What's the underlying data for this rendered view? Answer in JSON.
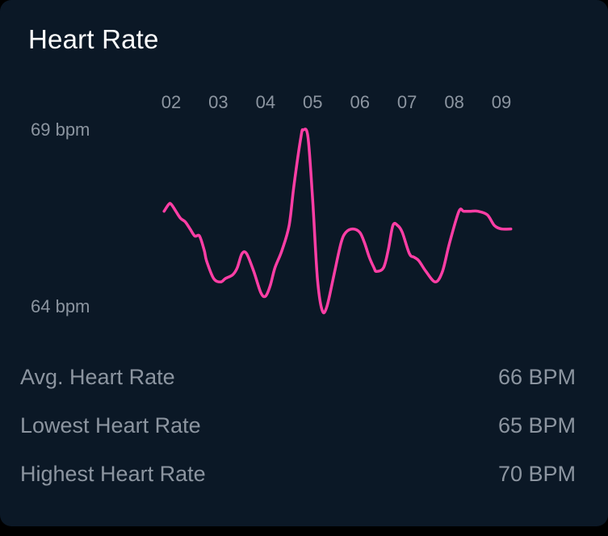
{
  "card": {
    "title": "Heart Rate",
    "background": "#0b1826"
  },
  "chart_data": {
    "type": "line",
    "title": "Heart Rate",
    "x_ticks": [
      "02",
      "03",
      "04",
      "05",
      "06",
      "07",
      "08",
      "09"
    ],
    "y_labels": [
      "69 bpm",
      "64 bpm"
    ],
    "ylim": [
      64,
      69
    ],
    "xlim": [
      2,
      9
    ],
    "grid": false,
    "line_color": "#ff3ea5",
    "series": [
      {
        "x": [
          1.85,
          1.95,
          2.0,
          2.1,
          2.2,
          2.3,
          2.4,
          2.5,
          2.6,
          2.7,
          2.75,
          2.9,
          3.05,
          3.15,
          3.3,
          3.4,
          3.5,
          3.6,
          3.75,
          3.9,
          4.0,
          4.1,
          4.2,
          4.35,
          4.5,
          4.6,
          4.75,
          4.8,
          4.9,
          5.0,
          5.1,
          5.2,
          5.3,
          5.45,
          5.6,
          5.7,
          5.85,
          6.0,
          6.1,
          6.2,
          6.3,
          6.35,
          6.5,
          6.6,
          6.7,
          6.8,
          6.9,
          7.05,
          7.15,
          7.25,
          7.4,
          7.6,
          7.75,
          7.9,
          8.1,
          8.2,
          8.35,
          8.5,
          8.7,
          8.85,
          9.0,
          9.2
        ],
        "y": [
          66.7,
          66.9,
          66.9,
          66.7,
          66.5,
          66.4,
          66.2,
          66.0,
          66.0,
          65.6,
          65.3,
          64.8,
          64.7,
          64.8,
          64.9,
          65.1,
          65.5,
          65.5,
          65.0,
          64.4,
          64.3,
          64.6,
          65.1,
          65.6,
          66.3,
          67.4,
          68.8,
          69.0,
          68.8,
          67.0,
          64.8,
          63.9,
          64.0,
          64.9,
          65.8,
          66.1,
          66.2,
          66.1,
          65.8,
          65.4,
          65.1,
          65.0,
          65.1,
          65.6,
          66.3,
          66.3,
          66.1,
          65.5,
          65.4,
          65.3,
          65.0,
          64.7,
          65.0,
          65.8,
          66.7,
          66.7,
          66.7,
          66.7,
          66.6,
          66.3,
          66.2,
          66.2
        ]
      }
    ]
  },
  "stats": [
    {
      "label": "Avg. Heart Rate",
      "value": "66 BPM"
    },
    {
      "label": "Lowest Heart Rate",
      "value": "65 BPM"
    },
    {
      "label": "Highest Heart Rate",
      "value": "70 BPM"
    }
  ]
}
